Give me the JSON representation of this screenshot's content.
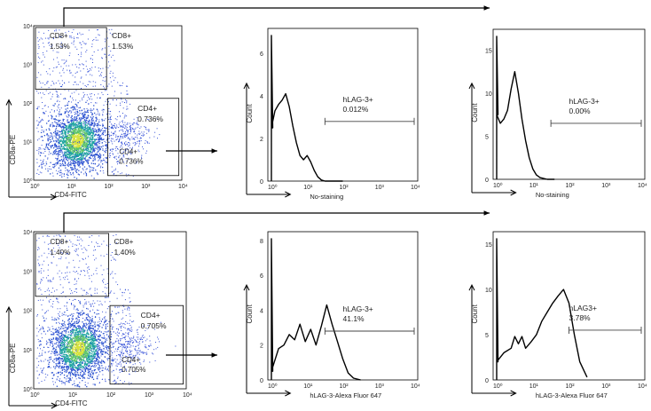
{
  "chart_data": [
    {
      "type": "scatter",
      "panel": "dotplot-row1",
      "xlabel": "CD4-FITC",
      "ylabel": "CD8a-PE",
      "xticks": [
        "10⁰",
        "10¹",
        "10²",
        "10³",
        "10⁴"
      ],
      "yticks": [
        "10⁰",
        "10¹",
        "10²",
        "10³",
        "10⁴"
      ],
      "scale": "log",
      "gates": [
        {
          "name": "CD8+",
          "texts": [
            "CD8+",
            "1.53%"
          ],
          "value": 1.53
        },
        {
          "name": "CD4+",
          "texts": [
            "CD4+",
            "0.736%"
          ],
          "value": 0.736
        }
      ],
      "overlay_labels": [
        "CD8+",
        "1.53%",
        "CD4+",
        "0.736%"
      ]
    },
    {
      "type": "line",
      "panel": "hist-row1-a",
      "xlabel": "No-staining",
      "ylabel": "Count",
      "xticks": [
        "10⁰",
        "10¹",
        "10²",
        "10³",
        "10⁴"
      ],
      "yticks": [
        "0",
        "2",
        "4",
        "6"
      ],
      "ylim": [
        0,
        7
      ],
      "gate": {
        "name": "hLAG-3+",
        "value_label": "0.012%",
        "from_log": 1.5,
        "to_log": 4.0,
        "y": 2.8
      },
      "series": [
        {
          "x_log": [
            0.0,
            0.1,
            0.2,
            0.3,
            0.4,
            0.5,
            0.6,
            0.7,
            0.8,
            0.9,
            1.0,
            1.1,
            1.2,
            1.3,
            1.4,
            1.5,
            1.7,
            2.0
          ],
          "y": [
            2.5,
            3.3,
            3.6,
            3.8,
            4.1,
            3.5,
            2.6,
            1.8,
            1.2,
            1.0,
            1.2,
            0.9,
            0.5,
            0.2,
            0.05,
            0.0,
            0.0,
            0.0
          ]
        }
      ]
    },
    {
      "type": "line",
      "panel": "hist-row1-b",
      "xlabel": "No-staining",
      "ylabel": "Count",
      "xticks": [
        "10⁰",
        "10¹",
        "10²",
        "10³",
        "10⁴"
      ],
      "yticks": [
        "0",
        "5",
        "10",
        "15"
      ],
      "ylim": [
        0,
        17
      ],
      "gate": {
        "name": "hLAG-3+",
        "value_label": "0.00%",
        "from_log": 1.5,
        "to_log": 4.0,
        "y": 6.5
      },
      "series": [
        {
          "x_log": [
            0.0,
            0.1,
            0.2,
            0.3,
            0.4,
            0.5,
            0.6,
            0.7,
            0.8,
            0.9,
            1.0,
            1.1,
            1.2,
            1.4,
            1.6
          ],
          "y": [
            7.5,
            6.5,
            7.0,
            8.0,
            10.5,
            12.5,
            10.0,
            7.0,
            4.5,
            2.5,
            1.2,
            0.5,
            0.2,
            0.0,
            0.0
          ]
        }
      ]
    },
    {
      "type": "scatter",
      "panel": "dotplot-row2",
      "xlabel": "CD4-FITC",
      "ylabel": "CD8a-PE",
      "xticks": [
        "10⁰",
        "10¹",
        "10²",
        "10³",
        "10⁴"
      ],
      "yticks": [
        "10⁰",
        "10¹",
        "10²",
        "10³",
        "10⁴"
      ],
      "scale": "log",
      "gates": [
        {
          "name": "CD8+",
          "texts": [
            "CD8+",
            "1.40%"
          ],
          "value": 1.4
        },
        {
          "name": "CD4+",
          "texts": [
            "CD4+",
            "0.705%"
          ],
          "value": 0.705
        }
      ],
      "overlay_labels": [
        "CD8+",
        "1.40%",
        "CD4+",
        "0.705%"
      ]
    },
    {
      "type": "line",
      "panel": "hist-row2-a",
      "xlabel": "hLAG-3-Alexa Fluor 647",
      "ylabel": "Count",
      "xticks": [
        "10⁰",
        "10¹",
        "10²",
        "10³",
        "10⁴"
      ],
      "yticks": [
        "0",
        "2",
        "4",
        "6",
        "8"
      ],
      "ylim": [
        0,
        8.3
      ],
      "gate": {
        "name": "hLAG-3+",
        "value_label": "41.1%",
        "from_log": 1.5,
        "to_log": 4.0,
        "y": 2.8
      },
      "series": [
        {
          "x_log": [
            0.0,
            0.2,
            0.35,
            0.5,
            0.65,
            0.8,
            0.95,
            1.1,
            1.25,
            1.4,
            1.55,
            1.7,
            1.85,
            2.0,
            2.15,
            2.3,
            2.5
          ],
          "y": [
            0.5,
            1.8,
            2.0,
            2.6,
            2.3,
            3.2,
            2.2,
            2.9,
            2.0,
            3.1,
            4.3,
            3.2,
            2.2,
            1.2,
            0.4,
            0.1,
            0.0
          ]
        }
      ]
    },
    {
      "type": "line",
      "panel": "hist-row2-b",
      "xlabel": "hLAG-3-Alexa Fluor 647",
      "ylabel": "Count",
      "xticks": [
        "10⁰",
        "10¹",
        "10²",
        "10³",
        "10⁴"
      ],
      "yticks": [
        "0",
        "5",
        "10",
        "15"
      ],
      "ylim": [
        0,
        16
      ],
      "gate": {
        "name": "hLAG3+",
        "value_label": "3.78%",
        "from_log": 2.0,
        "to_log": 4.0,
        "y": 5.5
      },
      "series": [
        {
          "x_log": [
            0.0,
            0.2,
            0.4,
            0.5,
            0.6,
            0.7,
            0.8,
            0.95,
            1.1,
            1.25,
            1.4,
            1.55,
            1.7,
            1.85,
            2.0,
            2.15,
            2.3,
            2.5
          ],
          "y": [
            2.0,
            3.0,
            3.5,
            4.8,
            4.0,
            4.8,
            3.5,
            4.2,
            5.0,
            6.5,
            7.5,
            8.5,
            9.3,
            10.0,
            8.5,
            5.0,
            2.0,
            0.3
          ]
        }
      ]
    }
  ]
}
